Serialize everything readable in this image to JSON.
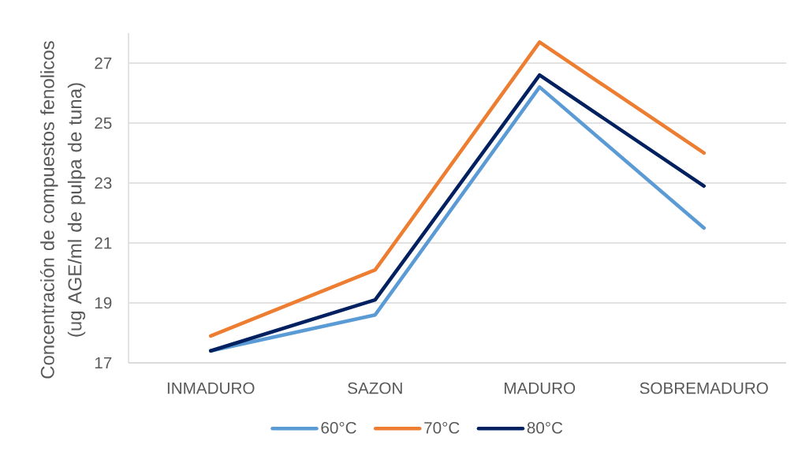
{
  "chart_data": {
    "type": "line",
    "categories": [
      "INMADURO",
      "SAZON",
      "MADURO",
      "SOBREMADURO"
    ],
    "ylabel": "Concentración de compuestos fenolicos (ug AGE/ml de pulpa de tuna)",
    "series": [
      {
        "name": "60°C",
        "color": "#5b9bd5",
        "values": [
          17.4,
          18.6,
          26.2,
          21.5
        ]
      },
      {
        "name": "70°C",
        "color": "#ed7d31",
        "values": [
          17.9,
          20.1,
          27.7,
          24.0
        ]
      },
      {
        "name": "80°C",
        "color": "#002060",
        "values": [
          17.4,
          19.1,
          26.6,
          22.9
        ]
      }
    ],
    "ylim": [
      17,
      28
    ],
    "yticks": [
      17,
      19,
      21,
      23,
      25,
      27
    ],
    "grid": "y",
    "legend": "bottom"
  }
}
